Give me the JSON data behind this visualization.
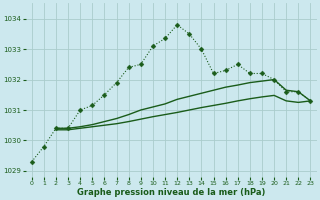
{
  "title": "Graphe pression niveau de la mer (hPa)",
  "background_color": "#cce8ee",
  "grid_color": "#aacccc",
  "line_color": "#1a5c1a",
  "ylim": [
    1028.8,
    1034.5
  ],
  "yticks": [
    1029,
    1030,
    1031,
    1032,
    1033,
    1034
  ],
  "xlim": [
    -0.5,
    23.5
  ],
  "series1_x": [
    0,
    1,
    2,
    3,
    4,
    5,
    6,
    7,
    8,
    9,
    10,
    11,
    12,
    13,
    14,
    15,
    16,
    17,
    18,
    19,
    20,
    21,
    22,
    23
  ],
  "series1_y": [
    1029.3,
    1029.8,
    1030.4,
    1030.4,
    1031.0,
    1031.15,
    1031.5,
    1031.9,
    1032.4,
    1032.5,
    1033.1,
    1033.35,
    1033.8,
    1033.5,
    1033.0,
    1032.2,
    1032.3,
    1032.5,
    1032.2,
    1032.2,
    1032.0,
    1031.6,
    1031.6,
    1031.3
  ],
  "series2_x": [
    2,
    3,
    4,
    5,
    6,
    7,
    8,
    9,
    10,
    11,
    12,
    13,
    14,
    15,
    16,
    17,
    18,
    19,
    20,
    21,
    22,
    23
  ],
  "series2_y": [
    1030.4,
    1030.4,
    1030.45,
    1030.52,
    1030.62,
    1030.72,
    1030.85,
    1031.0,
    1031.1,
    1031.2,
    1031.35,
    1031.45,
    1031.55,
    1031.65,
    1031.75,
    1031.82,
    1031.9,
    1031.95,
    1032.0,
    1031.65,
    1031.6,
    1031.3
  ],
  "series3_x": [
    2,
    3,
    4,
    5,
    6,
    7,
    8,
    9,
    10,
    11,
    12,
    13,
    14,
    15,
    16,
    17,
    18,
    19,
    20,
    21,
    22,
    23
  ],
  "series3_y": [
    1030.35,
    1030.35,
    1030.4,
    1030.45,
    1030.5,
    1030.55,
    1030.62,
    1030.7,
    1030.78,
    1030.85,
    1030.92,
    1031.0,
    1031.08,
    1031.15,
    1031.22,
    1031.3,
    1031.37,
    1031.43,
    1031.48,
    1031.3,
    1031.25,
    1031.3
  ],
  "markersize": 2.5
}
